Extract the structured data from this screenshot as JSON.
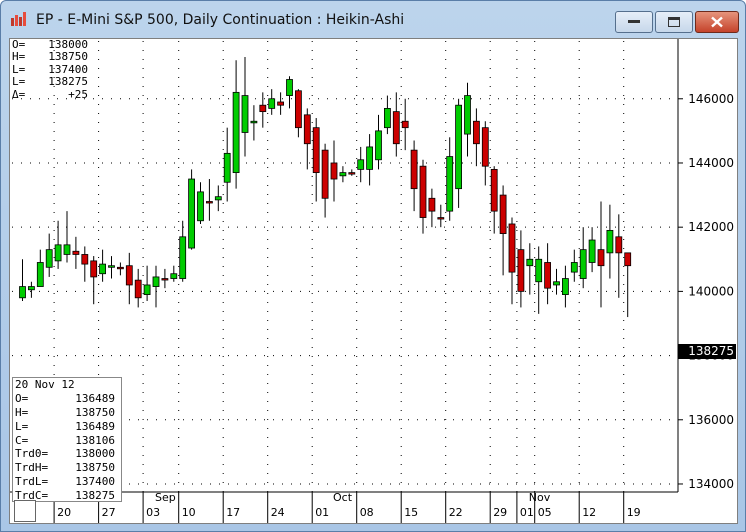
{
  "window": {
    "title": "EP - E-Mini S&P 500, Daily Continuation : Heikin-Ashi"
  },
  "ohlc_readout": [
    {
      "key": "O=",
      "value": "138000"
    },
    {
      "key": "H=",
      "value": "138750"
    },
    {
      "key": "L=",
      "value": "137400"
    },
    {
      "key": "L=",
      "value": "138275"
    },
    {
      "key": "Δ=",
      "value": "+25"
    }
  ],
  "data_window": {
    "date": "20 Nov 12",
    "rows": [
      {
        "key": "O=",
        "value": "136489"
      },
      {
        "key": "H=",
        "value": "138750"
      },
      {
        "key": "L=",
        "value": "136489"
      },
      {
        "key": "C=",
        "value": "138106"
      },
      {
        "key": "Trd0=",
        "value": "138000"
      },
      {
        "key": "TrdH=",
        "value": "138750"
      },
      {
        "key": "TrdL=",
        "value": "137400"
      },
      {
        "key": "TrdC=",
        "value": "138275"
      }
    ]
  },
  "last_price_tag": "138275",
  "colors": {
    "up": "#00cc00",
    "down": "#cc0000",
    "doji": "#cc0000"
  },
  "chart_data": {
    "type": "candlestick",
    "subtype": "heikin-ashi",
    "ylim": [
      133750,
      147800
    ],
    "y_ticks": [
      "134000",
      "136000",
      "138000",
      "140000",
      "142000",
      "144000",
      "146000"
    ],
    "x_ticks": [
      {
        "label": "20",
        "index": 4
      },
      {
        "label": "27",
        "index": 9
      },
      {
        "label": "03",
        "index": 14
      },
      {
        "label": "10",
        "index": 18
      },
      {
        "label": "17",
        "index": 23
      },
      {
        "label": "24",
        "index": 28
      },
      {
        "label": "01",
        "index": 33
      },
      {
        "label": "08",
        "index": 38
      },
      {
        "label": "15",
        "index": 43
      },
      {
        "label": "22",
        "index": 48
      },
      {
        "label": "29",
        "index": 53
      },
      {
        "label": "01",
        "index": 56
      },
      {
        "label": "05",
        "index": 58
      },
      {
        "label": "12",
        "index": 63
      },
      {
        "label": "19",
        "index": 68
      }
    ],
    "month_labels": [
      {
        "label": "Sep",
        "index": 15
      },
      {
        "label": "Oct",
        "index": 35
      },
      {
        "label": "Nov",
        "index": 57
      }
    ],
    "candles": [
      [
        139800,
        140150,
        139700,
        141000
      ],
      [
        140050,
        140150,
        139800,
        140300
      ],
      [
        140150,
        140900,
        140150,
        141300
      ],
      [
        140750,
        141300,
        140450,
        141800
      ],
      [
        140950,
        141450,
        140700,
        142200
      ],
      [
        141150,
        141450,
        140900,
        142500
      ],
      [
        141250,
        141150,
        140700,
        141700
      ],
      [
        141150,
        140850,
        140300,
        141400
      ],
      [
        140950,
        140450,
        139600,
        141100
      ],
      [
        140550,
        140850,
        140300,
        141300
      ],
      [
        140750,
        140800,
        140400,
        141100
      ],
      [
        140750,
        140750,
        140500,
        140900
      ],
      [
        140800,
        140200,
        139600,
        141200
      ],
      [
        140350,
        139800,
        139500,
        140700
      ],
      [
        139900,
        140200,
        139700,
        140800
      ],
      [
        140150,
        140450,
        139500,
        140800
      ],
      [
        140400,
        140400,
        140100,
        140700
      ],
      [
        140400,
        140550,
        140300,
        140800
      ],
      [
        140400,
        141700,
        140300,
        142200
      ],
      [
        141350,
        143500,
        141300,
        143800
      ],
      [
        142200,
        143100,
        142100,
        143400
      ],
      [
        142800,
        142800,
        142200,
        143500
      ],
      [
        142850,
        142950,
        142500,
        143300
      ],
      [
        143400,
        144300,
        142800,
        145100
      ],
      [
        143700,
        146200,
        143200,
        147200
      ],
      [
        144950,
        146100,
        144200,
        147300
      ],
      [
        145250,
        145300,
        144700,
        145800
      ],
      [
        145800,
        145600,
        145100,
        146200
      ],
      [
        145700,
        146000,
        145500,
        146300
      ],
      [
        145900,
        145800,
        145500,
        146200
      ],
      [
        146100,
        146600,
        145700,
        146700
      ],
      [
        146250,
        145100,
        144800,
        146300
      ],
      [
        145500,
        144600,
        143800,
        145700
      ],
      [
        145100,
        143700,
        142800,
        145400
      ],
      [
        144400,
        142900,
        142300,
        144600
      ],
      [
        144000,
        143500,
        142800,
        144700
      ],
      [
        143600,
        143700,
        143400,
        143900
      ],
      [
        143700,
        143700,
        143600,
        143800
      ],
      [
        143800,
        144100,
        143400,
        144500
      ],
      [
        143800,
        144500,
        143300,
        144900
      ],
      [
        144100,
        145000,
        143800,
        145500
      ],
      [
        145100,
        145700,
        144900,
        146100
      ],
      [
        145600,
        144600,
        144200,
        146200
      ],
      [
        145300,
        145100,
        144400,
        146000
      ],
      [
        144400,
        143200,
        142500,
        144700
      ],
      [
        143900,
        142300,
        141800,
        144100
      ],
      [
        142900,
        142500,
        142000,
        143200
      ],
      [
        142300,
        142300,
        142000,
        142700
      ],
      [
        142500,
        144200,
        142200,
        144800
      ],
      [
        143200,
        145800,
        142600,
        146000
      ],
      [
        144900,
        146100,
        144200,
        146500
      ],
      [
        145300,
        144600,
        143900,
        145700
      ],
      [
        145100,
        143900,
        143300,
        145300
      ],
      [
        143800,
        142500,
        141800,
        143900
      ],
      [
        143000,
        141800,
        140500,
        143300
      ],
      [
        142100,
        140600,
        139600,
        142300
      ],
      [
        141300,
        140000,
        139500,
        141900
      ],
      [
        140800,
        141000,
        139900,
        141500
      ],
      [
        140300,
        141000,
        139300,
        141400
      ],
      [
        140900,
        140100,
        139600,
        141500
      ],
      [
        140200,
        140300,
        139900,
        140700
      ],
      [
        139900,
        140400,
        139500,
        140800
      ],
      [
        140600,
        140900,
        140300,
        141300
      ],
      [
        140400,
        141300,
        140100,
        142000
      ],
      [
        140900,
        141600,
        140600,
        142000
      ],
      [
        141300,
        140800,
        139500,
        142800
      ],
      [
        141200,
        141900,
        140400,
        142700
      ],
      [
        141700,
        141200,
        139800,
        142400
      ],
      [
        141200,
        140800,
        139200,
        141200
      ]
    ]
  }
}
